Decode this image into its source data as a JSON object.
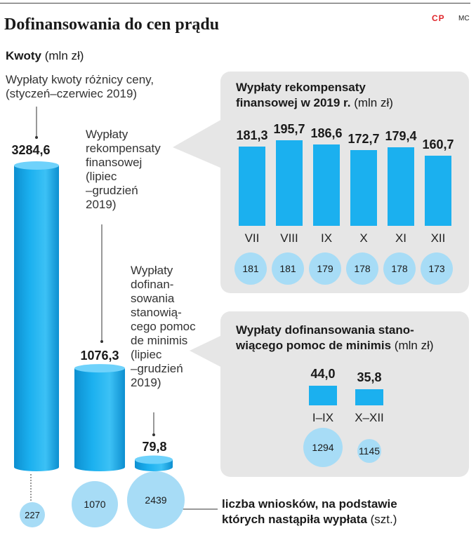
{
  "header": {
    "title": "Dofinansowania do cen prądu",
    "logo": "CP",
    "credit": "MC",
    "units_bold": "Kwoty",
    "units": "(mln zł)"
  },
  "main_chart": {
    "labels": {
      "a_line1": "Wypłaty kwoty różnicy ceny,",
      "a_line2": "(styczeń–czerwiec 2019)",
      "b_line1": "Wypłaty",
      "b_line2": "rekompensaty",
      "b_line3": "finansowej",
      "b_line4": "(lipiec",
      "b_line5": "–grudzień",
      "b_line6": "2019)",
      "c_line1": "Wypłaty",
      "c_line2": "dofinan-",
      "c_line3": "sowania",
      "c_line4": "stanowią-",
      "c_line5": "cego pomoc",
      "c_line6": "de minimis",
      "c_line7": "(lipiec",
      "c_line8": "–grudzień",
      "c_line9": "2019)"
    },
    "legend_bold_1": "liczba  wniosków, na podstawie",
    "legend_bold_2": "których nastąpiła wypłata",
    "legend_units": "(szt.)"
  },
  "panel1": {
    "title_bold_1": "Wypłaty rekompensaty",
    "title_bold_2": "finansowej w 2019 r.",
    "title_units": "(mln zł)"
  },
  "panel2": {
    "title_bold_1": "Wypłaty dofinansowania stano-",
    "title_bold_2": "wiącego pomoc de minimis",
    "title_units": "(mln zł)"
  },
  "chart_data": [
    {
      "type": "bar",
      "categories": [
        "Wypłaty kwoty różnicy ceny, (styczeń–czerwiec 2019)",
        "Wypłaty rekompensaty finansowej (lipiec–grudzień 2019)",
        "Wypłaty dofinansowania stanowiącego pomoc de minimis (lipiec–grudzień 2019)"
      ],
      "values": [
        3284.6,
        1076.3,
        79.8
      ],
      "value_labels": [
        "3284,6",
        "1076,3",
        "79,8"
      ],
      "counts": [
        227,
        1070,
        2439
      ],
      "count_labels": [
        "227",
        "1070",
        "2439"
      ],
      "ylim": [
        0,
        3284.6
      ]
    },
    {
      "type": "bar",
      "categories": [
        "VII",
        "VIII",
        "IX",
        "X",
        "XI",
        "XII"
      ],
      "values": [
        181.3,
        195.7,
        186.6,
        172.7,
        179.4,
        160.7
      ],
      "value_labels": [
        "181,3",
        "195,7",
        "186,6",
        "172,7",
        "179,4",
        "160,7"
      ],
      "counts": [
        181,
        181,
        179,
        178,
        178,
        173
      ],
      "count_labels": [
        "181",
        "181",
        "179",
        "178",
        "178",
        "173"
      ]
    },
    {
      "type": "bar",
      "categories": [
        "I–IX",
        "X–XII"
      ],
      "values": [
        44.0,
        35.8
      ],
      "value_labels": [
        "44,0",
        "35,8"
      ],
      "counts": [
        1294,
        1145
      ],
      "count_labels": [
        "1294",
        "1145"
      ]
    }
  ],
  "colors": {
    "bar": "#1bb0ef",
    "bar_dark": "#0d8fd0",
    "bar_light": "#6fd2fb",
    "bubble": "#a7dcf6",
    "panel": "#e6e6e6",
    "logo": "#e0262b"
  }
}
